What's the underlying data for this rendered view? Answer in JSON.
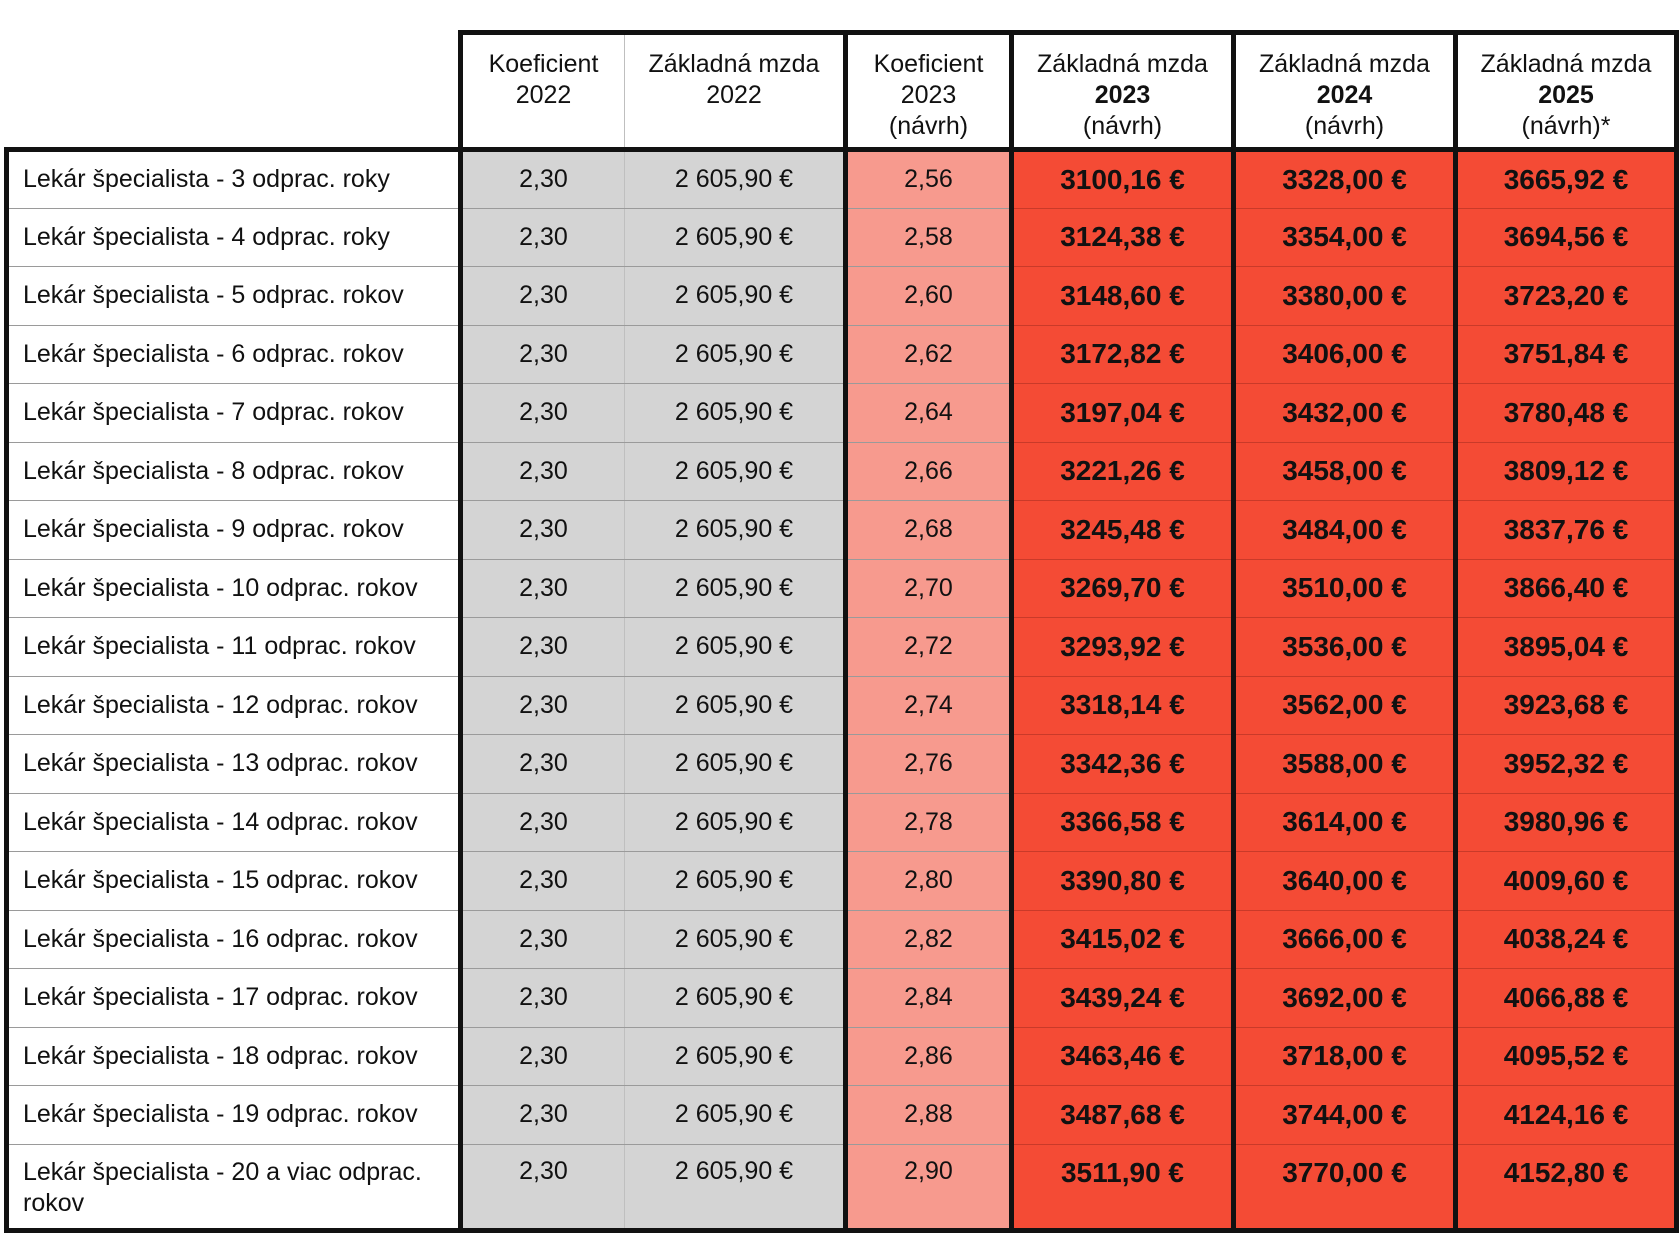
{
  "table": {
    "headers": [
      {
        "line1": "Koeficient",
        "line2": "2022",
        "line3": ""
      },
      {
        "line1": "Základná mzda",
        "line2": "2022",
        "line3": ""
      },
      {
        "line1": "Koeficient",
        "line2": "2023",
        "line3": "(návrh)"
      },
      {
        "line1": "Základná mzda",
        "line2": "2023",
        "line3": "(návrh)"
      },
      {
        "line1": "Základná mzda",
        "line2": "2024",
        "line3": "(návrh)"
      },
      {
        "line1": "Základná mzda",
        "line2": "2025",
        "line3": "(návrh)*"
      }
    ],
    "rows": [
      {
        "label": "Lekár špecialista - 3 odprac. roky",
        "k2022": "2,30",
        "m2022": "2 605,90 €",
        "k2023": "2,56",
        "m2023": "3100,16 €",
        "m2024": "3328,00 €",
        "m2025": "3665,92 €"
      },
      {
        "label": "Lekár špecialista - 4 odprac. roky",
        "k2022": "2,30",
        "m2022": "2 605,90 €",
        "k2023": "2,58",
        "m2023": "3124,38 €",
        "m2024": "3354,00 €",
        "m2025": "3694,56 €"
      },
      {
        "label": "Lekár špecialista - 5 odprac. rokov",
        "k2022": "2,30",
        "m2022": "2 605,90 €",
        "k2023": "2,60",
        "m2023": "3148,60 €",
        "m2024": "3380,00 €",
        "m2025": "3723,20 €"
      },
      {
        "label": "Lekár špecialista - 6 odprac. rokov",
        "k2022": "2,30",
        "m2022": "2 605,90 €",
        "k2023": "2,62",
        "m2023": "3172,82 €",
        "m2024": "3406,00 €",
        "m2025": "3751,84 €"
      },
      {
        "label": "Lekár špecialista - 7 odprac. rokov",
        "k2022": "2,30",
        "m2022": "2 605,90 €",
        "k2023": "2,64",
        "m2023": "3197,04 €",
        "m2024": "3432,00 €",
        "m2025": "3780,48 €"
      },
      {
        "label": "Lekár špecialista - 8 odprac. rokov",
        "k2022": "2,30",
        "m2022": "2 605,90 €",
        "k2023": "2,66",
        "m2023": "3221,26 €",
        "m2024": "3458,00 €",
        "m2025": "3809,12 €"
      },
      {
        "label": "Lekár špecialista - 9 odprac. rokov",
        "k2022": "2,30",
        "m2022": "2 605,90 €",
        "k2023": "2,68",
        "m2023": "3245,48 €",
        "m2024": "3484,00 €",
        "m2025": "3837,76 €"
      },
      {
        "label": "Lekár špecialista - 10 odprac. rokov",
        "k2022": "2,30",
        "m2022": "2 605,90 €",
        "k2023": "2,70",
        "m2023": "3269,70 €",
        "m2024": "3510,00 €",
        "m2025": "3866,40 €"
      },
      {
        "label": "Lekár špecialista - 11 odprac. rokov",
        "k2022": "2,30",
        "m2022": "2 605,90 €",
        "k2023": "2,72",
        "m2023": "3293,92 €",
        "m2024": "3536,00 €",
        "m2025": "3895,04 €"
      },
      {
        "label": "Lekár špecialista - 12 odprac. rokov",
        "k2022": "2,30",
        "m2022": "2 605,90 €",
        "k2023": "2,74",
        "m2023": "3318,14 €",
        "m2024": "3562,00 €",
        "m2025": "3923,68 €"
      },
      {
        "label": "Lekár špecialista - 13 odprac. rokov",
        "k2022": "2,30",
        "m2022": "2 605,90 €",
        "k2023": "2,76",
        "m2023": "3342,36 €",
        "m2024": "3588,00 €",
        "m2025": "3952,32 €"
      },
      {
        "label": "Lekár špecialista - 14 odprac. rokov",
        "k2022": "2,30",
        "m2022": "2 605,90 €",
        "k2023": "2,78",
        "m2023": "3366,58 €",
        "m2024": "3614,00 €",
        "m2025": "3980,96 €"
      },
      {
        "label": "Lekár špecialista - 15 odprac. rokov",
        "k2022": "2,30",
        "m2022": "2 605,90 €",
        "k2023": "2,80",
        "m2023": "3390,80 €",
        "m2024": "3640,00 €",
        "m2025": "4009,60 €"
      },
      {
        "label": "Lekár špecialista - 16 odprac. rokov",
        "k2022": "2,30",
        "m2022": "2 605,90 €",
        "k2023": "2,82",
        "m2023": "3415,02 €",
        "m2024": "3666,00 €",
        "m2025": "4038,24 €"
      },
      {
        "label": "Lekár špecialista - 17 odprac. rokov",
        "k2022": "2,30",
        "m2022": "2 605,90 €",
        "k2023": "2,84",
        "m2023": "3439,24 €",
        "m2024": "3692,00 €",
        "m2025": "4066,88 €"
      },
      {
        "label": "Lekár špecialista - 18 odprac. rokov",
        "k2022": "2,30",
        "m2022": "2 605,90 €",
        "k2023": "2,86",
        "m2023": "3463,46 €",
        "m2024": "3718,00 €",
        "m2025": "4095,52 €"
      },
      {
        "label": "Lekár špecialista - 19 odprac. rokov",
        "k2022": "2,30",
        "m2022": "2 605,90 €",
        "k2023": "2,88",
        "m2023": "3487,68 €",
        "m2024": "3744,00 €",
        "m2025": "4124,16 €"
      },
      {
        "label": "Lekár špecialista - 20 a viac odprac. rokov",
        "k2022": "2,30",
        "m2022": "2 605,90 €",
        "k2023": "2,90",
        "m2023": "3511,90 €",
        "m2024": "3770,00 €",
        "m2025": "4152,80 €"
      }
    ]
  },
  "colors": {
    "gray_fill": "#d4d4d4",
    "pink_fill": "#f79a8e",
    "red_fill": "#f44b35",
    "border": "#111111"
  }
}
